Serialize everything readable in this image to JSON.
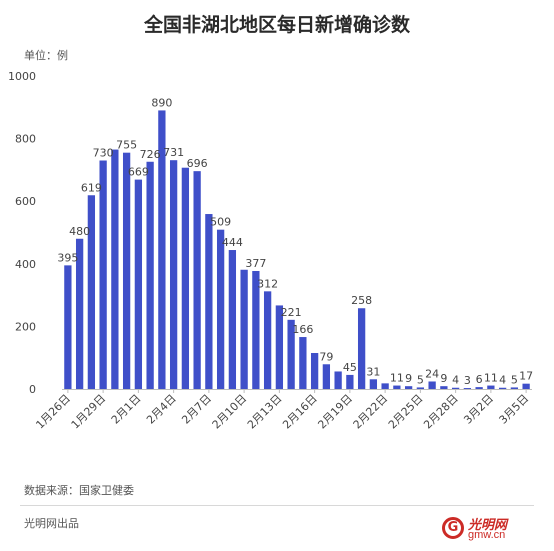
{
  "header": {
    "title": "全国非湖北地区每日新增确诊数",
    "unit": "单位：例"
  },
  "footer": {
    "source": "数据来源：国家卫健委",
    "producer": "光明网出品",
    "logo_url_text": "gmw.cn",
    "logo_cn": "光明网"
  },
  "colors": {
    "bar": "#3f4fc9",
    "axis": "#bdbdbd",
    "grid": "#ececec"
  },
  "chart_data": {
    "type": "bar",
    "title": "全国非湖北地区每日新增确诊数",
    "xlabel": "",
    "ylabel": "",
    "ylim": [
      0,
      1000
    ],
    "yticks": [
      0,
      200,
      400,
      600,
      800,
      1000
    ],
    "grid": false,
    "legend": "none",
    "categories": [
      "1月26日",
      "1月27日",
      "1月28日",
      "1月29日",
      "1月30日",
      "1月31日",
      "2月1日",
      "2月2日",
      "2月3日",
      "2月4日",
      "2月5日",
      "2月6日",
      "2月7日",
      "2月8日",
      "2月9日",
      "2月10日",
      "2月11日",
      "2月12日",
      "2月13日",
      "2月14日",
      "2月15日",
      "2月16日",
      "2月17日",
      "2月18日",
      "2月19日",
      "2月20日",
      "2月21日",
      "2月22日",
      "2月23日",
      "2月24日",
      "2月25日",
      "2月26日",
      "2月27日",
      "2月28日",
      "2月29日",
      "3月1日",
      "3月2日",
      "3月3日",
      "3月4日",
      "3月5日"
    ],
    "values": [
      395,
      480,
      619,
      730,
      765,
      755,
      669,
      726,
      890,
      731,
      707,
      696,
      559,
      509,
      444,
      381,
      377,
      312,
      267,
      221,
      166,
      115,
      79,
      56,
      45,
      258,
      31,
      18,
      11,
      9,
      5,
      24,
      9,
      4,
      3,
      6,
      11,
      4,
      5,
      17
    ],
    "data_labels": [
      {
        "i": 0,
        "text": "395"
      },
      {
        "i": 1,
        "text": "480"
      },
      {
        "i": 2,
        "text": "619"
      },
      {
        "i": 3,
        "text": "730"
      },
      {
        "i": 5,
        "text": "755"
      },
      {
        "i": 6,
        "text": "669"
      },
      {
        "i": 7,
        "text": "726"
      },
      {
        "i": 8,
        "text": "890"
      },
      {
        "i": 9,
        "text": "731"
      },
      {
        "i": 11,
        "text": "696"
      },
      {
        "i": 13,
        "text": "509"
      },
      {
        "i": 14,
        "text": "444"
      },
      {
        "i": 16,
        "text": "377"
      },
      {
        "i": 17,
        "text": "312"
      },
      {
        "i": 19,
        "text": "221"
      },
      {
        "i": 20,
        "text": "166"
      },
      {
        "i": 22,
        "text": "79"
      },
      {
        "i": 24,
        "text": "45"
      },
      {
        "i": 25,
        "text": "258"
      },
      {
        "i": 26,
        "text": "31"
      },
      {
        "i": 28,
        "text": "11"
      },
      {
        "i": 29,
        "text": "9"
      },
      {
        "i": 30,
        "text": "5"
      },
      {
        "i": 31,
        "text": "24"
      },
      {
        "i": 32,
        "text": "9"
      },
      {
        "i": 33,
        "text": "4"
      },
      {
        "i": 34,
        "text": "3"
      },
      {
        "i": 35,
        "text": "6"
      },
      {
        "i": 36,
        "text": "11"
      },
      {
        "i": 37,
        "text": "4"
      },
      {
        "i": 38,
        "text": "5"
      },
      {
        "i": 39,
        "text": "17"
      }
    ],
    "xtick_labels": [
      {
        "i": 0,
        "text": "1月26日"
      },
      {
        "i": 3,
        "text": "1月29日"
      },
      {
        "i": 6,
        "text": "2月1日"
      },
      {
        "i": 9,
        "text": "2月4日"
      },
      {
        "i": 12,
        "text": "2月7日"
      },
      {
        "i": 15,
        "text": "2月10日"
      },
      {
        "i": 18,
        "text": "2月13日"
      },
      {
        "i": 21,
        "text": "2月16日"
      },
      {
        "i": 24,
        "text": "2月19日"
      },
      {
        "i": 27,
        "text": "2月22日"
      },
      {
        "i": 30,
        "text": "2月25日"
      },
      {
        "i": 33,
        "text": "2月28日"
      },
      {
        "i": 36,
        "text": "3月2日"
      },
      {
        "i": 39,
        "text": "3月5日"
      }
    ]
  }
}
